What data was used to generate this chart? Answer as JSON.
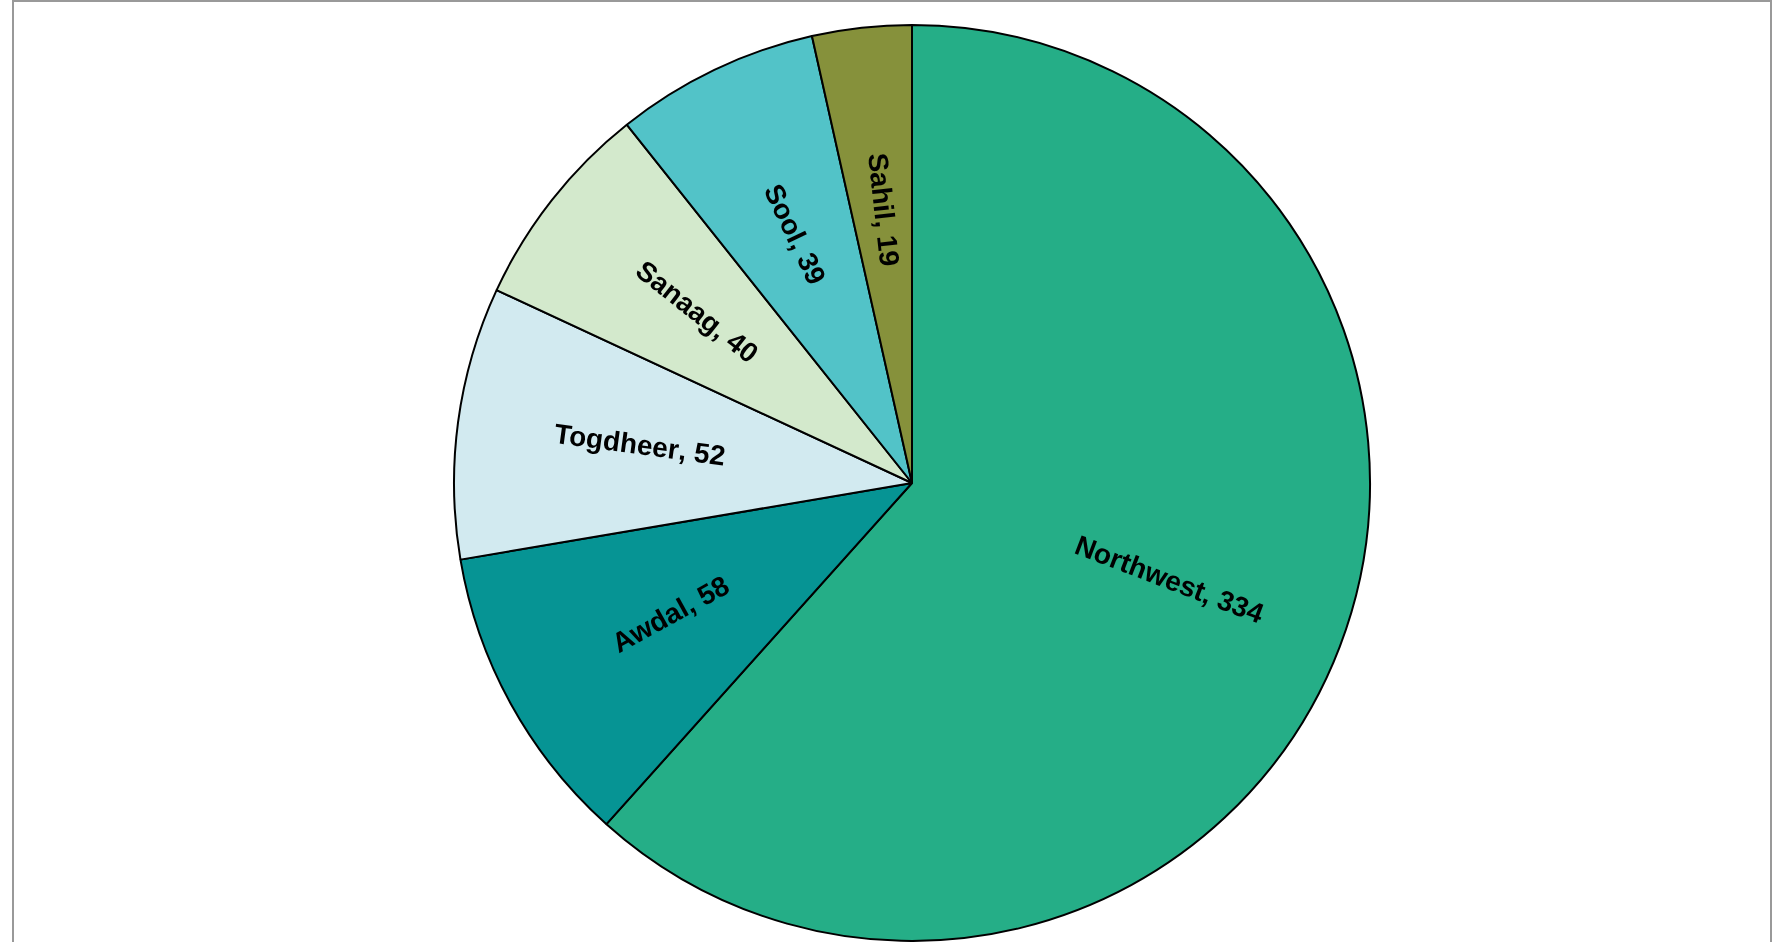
{
  "chart_data": {
    "type": "pie",
    "categories": [
      "Northwest",
      "Awdal",
      "Togdheer",
      "Sanaag",
      "Sool",
      "Sahil"
    ],
    "values": [
      334,
      58,
      52,
      40,
      39,
      19
    ],
    "value_labels": [
      ", 334",
      ", 58",
      ", 52",
      ", 40",
      ", 39",
      ", 19"
    ],
    "colors": [
      "#25ae87",
      "#069494",
      "#d2eaf0",
      "#d3e9cc",
      "#52c3c8",
      "#86913b"
    ],
    "legend": false
  }
}
